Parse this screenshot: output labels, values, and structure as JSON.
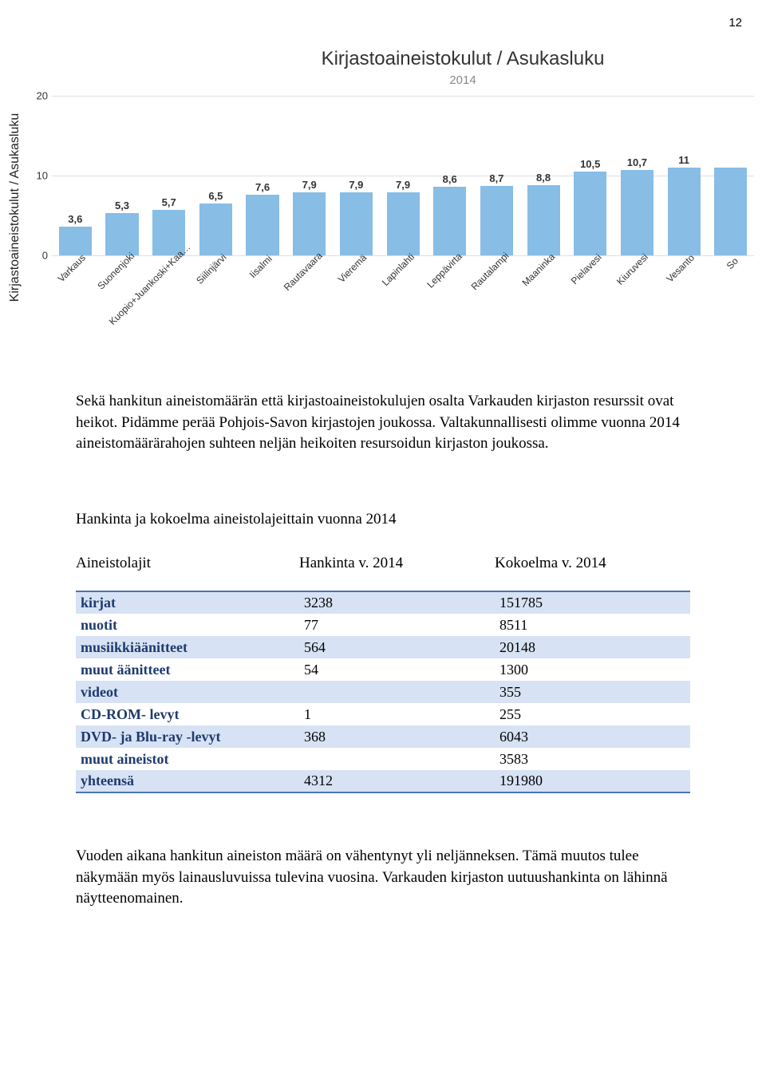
{
  "page_number": "12",
  "chart": {
    "type": "bar",
    "title": "Kirjastoaineistokulut / Asukasluku",
    "subtitle": "2014",
    "y_axis_label": "Kirjastoaineistokulut / Asukasluku",
    "title_fontsize": 24,
    "subtitle_fontsize": 15,
    "subtitle_color": "#888888",
    "y_label_fontsize": 16,
    "bar_color": "#88bde6",
    "grid_color": "#e0e0e0",
    "background_color": "#ffffff",
    "bar_width": 0.7,
    "ylim": [
      0,
      20
    ],
    "ytick_step": 10,
    "y_ticks": [
      0,
      10,
      20
    ],
    "value_label_fontsize": 13,
    "x_label_fontsize": 12,
    "x_label_rotation": -45,
    "categories": [
      "Varkaus",
      "Suonenjoki",
      "Kuopio+Juankoski+Kaa…",
      "Siilinjärvi",
      "Iisalmi",
      "Rautavaara",
      "Vieremä",
      "Lapinlahti",
      "Leppävirta",
      "Rautalampi",
      "Maaninka",
      "Pielavesi",
      "Kiuruvesi",
      "Vesanto",
      "So"
    ],
    "values": [
      3.6,
      5.3,
      5.7,
      6.5,
      7.6,
      7.9,
      7.9,
      7.9,
      8.6,
      8.7,
      8.8,
      10.5,
      10.7,
      11,
      11
    ],
    "value_labels": [
      "3,6",
      "5,3",
      "5,7",
      "6,5",
      "7,6",
      "7,9",
      "7,9",
      "7,9",
      "8,6",
      "8,7",
      "8,8",
      "10,5",
      "10,7",
      "11",
      ""
    ]
  },
  "paragraph1": "Sekä hankitun aineistomäärän että kirjastoaineistokulujen osalta Varkauden kirjaston resurssit ovat heikot. Pidämme perää Pohjois-Savon kirjastojen joukossa. Valtakunnallisesti olimme vuonna 2014 aineistomäärärahojen suhteen neljän heikoiten resursoidun kirjaston joukossa.",
  "table_heading": "Hankinta ja kokoelma aineistolajeittain vuonna 2014",
  "table_columns": {
    "col1": "Aineistolajit",
    "col2": "Hankinta v. 2014",
    "col3": "Kokoelma v. 2014"
  },
  "table": {
    "header_bg_odd": "#d7e3f4",
    "label_color": "#1f3a6e",
    "border_color": "#4a73b8",
    "rows": [
      {
        "label": "kirjat",
        "hankinta": "3238",
        "kokoelma": "151785"
      },
      {
        "label": "nuotit",
        "hankinta": "77",
        "kokoelma": "8511"
      },
      {
        "label": "musiikkiäänitteet",
        "hankinta": "564",
        "kokoelma": "20148"
      },
      {
        "label": "muut äänitteet",
        "hankinta": "54",
        "kokoelma": "1300"
      },
      {
        "label": "videot",
        "hankinta": "",
        "kokoelma": "355"
      },
      {
        "label": "CD-ROM- levyt",
        "hankinta": "1",
        "kokoelma": "255"
      },
      {
        "label": "DVD- ja Blu-ray -levyt",
        "hankinta": "368",
        "kokoelma": "6043"
      },
      {
        "label": "muut aineistot",
        "hankinta": "",
        "kokoelma": "3583"
      },
      {
        "label": "yhteensä",
        "hankinta": "4312",
        "kokoelma": "191980"
      }
    ]
  },
  "paragraph2": "Vuoden aikana hankitun aineiston määrä on vähentynyt yli neljänneksen. Tämä muutos tulee näkymään myös lainausluvuissa tulevina vuosina. Varkauden kirjaston uutuushankinta on lähinnä näytteenomainen."
}
